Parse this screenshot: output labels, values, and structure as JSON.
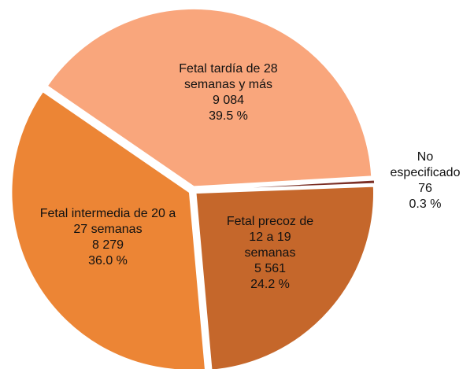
{
  "chart_data": {
    "type": "pie",
    "categories": [
      "Fetal tardía de 28 semanas y más",
      "No especificado",
      "Fetal precoz de 12 a 19 semanas",
      "Fetal intermedia de 20 a 27 semanas"
    ],
    "values": [
      9084,
      76,
      5561,
      8279
    ],
    "value_labels": [
      "9 084",
      "76",
      "5 561",
      "8 279"
    ],
    "percents": [
      39.5,
      0.3,
      24.2,
      36.0
    ],
    "percent_labels": [
      "39.5 %",
      "0.3 %",
      "24.2 %",
      "36.0 %"
    ],
    "colors": [
      "#f9a67c",
      "#7b2f25",
      "#c5672b",
      "#ec8535"
    ]
  }
}
